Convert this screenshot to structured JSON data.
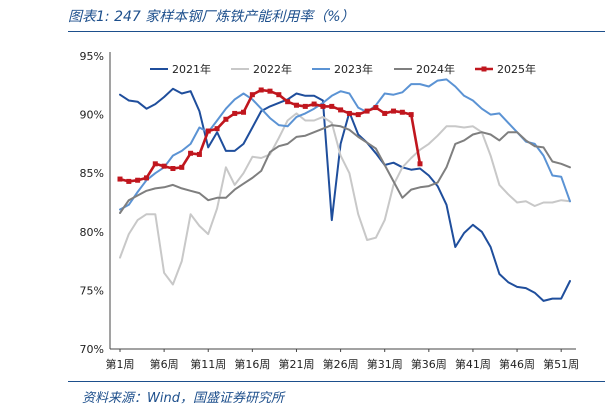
{
  "caption": "图表1: 247 家样本钢厂炼铁产能利用率（%）",
  "source": "资料来源：Wind，国盛证券研究所",
  "chart_data": {
    "type": "line",
    "title": "",
    "xlabel": "",
    "ylabel": "",
    "ylim": [
      70,
      95
    ],
    "yticks": [
      "95%",
      "90%",
      "85%",
      "80%",
      "75%",
      "70%"
    ],
    "xticks": [
      "第1周",
      "第6周",
      "第11周",
      "第16周",
      "第21周",
      "第26周",
      "第31周",
      "第36周",
      "第41周",
      "第46周",
      "第51周"
    ],
    "legend_position": "top",
    "grid": false,
    "series": [
      {
        "name": "2021年",
        "color": "#1f4e9c",
        "marker": "none",
        "x": [
          1,
          2,
          3,
          4,
          5,
          6,
          7,
          8,
          9,
          10,
          11,
          12,
          13,
          14,
          15,
          16,
          17,
          18,
          19,
          20,
          21,
          22,
          23,
          24,
          25,
          26,
          27,
          28,
          29,
          30,
          31,
          32,
          33,
          34,
          35,
          36,
          37,
          38,
          39,
          40,
          41,
          42,
          43,
          44,
          45,
          46,
          47,
          48,
          49,
          50,
          51,
          52
        ],
        "values": [
          91.7,
          91.2,
          91.1,
          90.5,
          90.9,
          91.5,
          92.2,
          91.8,
          92.0,
          90.3,
          87.2,
          88.5,
          86.9,
          86.9,
          87.5,
          88.9,
          90.3,
          90.7,
          91.0,
          91.3,
          91.8,
          91.6,
          91.6,
          91.2,
          81.0,
          87.5,
          90.2,
          88.3,
          87.6,
          86.7,
          85.7,
          85.9,
          85.5,
          85.3,
          85.4,
          84.8,
          83.9,
          82.3,
          78.7,
          79.9,
          80.6,
          80.0,
          78.7,
          76.4,
          75.7,
          75.3,
          75.2,
          74.8,
          74.1,
          74.3,
          74.3,
          75.8
        ]
      },
      {
        "name": "2022年",
        "color": "#c8c8c8",
        "marker": "none",
        "x": [
          1,
          2,
          3,
          4,
          5,
          6,
          7,
          8,
          9,
          10,
          11,
          12,
          13,
          14,
          15,
          16,
          17,
          18,
          19,
          20,
          21,
          22,
          23,
          24,
          25,
          26,
          27,
          28,
          29,
          30,
          31,
          32,
          33,
          34,
          35,
          36,
          37,
          38,
          39,
          40,
          41,
          42,
          43,
          44,
          45,
          46,
          47,
          48,
          49,
          50,
          51,
          52
        ],
        "values": [
          77.8,
          79.8,
          81.0,
          81.5,
          81.5,
          76.5,
          75.5,
          77.5,
          81.5,
          80.5,
          79.8,
          82.0,
          85.5,
          84.0,
          85.0,
          86.4,
          86.3,
          86.6,
          88.0,
          89.5,
          90.1,
          89.5,
          89.5,
          89.8,
          89.3,
          86.5,
          85.0,
          81.5,
          79.3,
          79.5,
          81.0,
          84.0,
          85.5,
          86.3,
          87.0,
          87.5,
          88.2,
          89.0,
          89.0,
          88.9,
          89.0,
          88.5,
          86.5,
          84.0,
          83.2,
          82.5,
          82.6,
          82.2,
          82.5,
          82.5,
          82.7,
          82.6
        ]
      },
      {
        "name": "2023年",
        "color": "#5b93d4",
        "marker": "none",
        "x": [
          1,
          2,
          3,
          4,
          5,
          6,
          7,
          8,
          9,
          10,
          11,
          12,
          13,
          14,
          15,
          16,
          17,
          18,
          19,
          20,
          21,
          22,
          23,
          24,
          25,
          26,
          27,
          28,
          29,
          30,
          31,
          32,
          33,
          34,
          35,
          36,
          37,
          38,
          39,
          40,
          41,
          42,
          43,
          44,
          45,
          46,
          47,
          48,
          49,
          50,
          51,
          52
        ],
        "values": [
          81.9,
          82.3,
          83.4,
          84.4,
          85.0,
          85.5,
          86.5,
          86.9,
          87.5,
          88.9,
          88.5,
          89.5,
          90.5,
          91.3,
          91.8,
          91.3,
          90.5,
          89.7,
          89.1,
          89.0,
          89.8,
          90.1,
          90.5,
          91.0,
          91.6,
          92.0,
          91.8,
          90.6,
          90.2,
          90.8,
          91.8,
          91.7,
          91.9,
          92.6,
          92.6,
          92.4,
          92.9,
          93.0,
          92.4,
          91.6,
          91.2,
          90.5,
          90.0,
          90.1,
          89.3,
          88.5,
          87.7,
          87.5,
          86.5,
          84.8,
          84.7,
          82.6
        ]
      },
      {
        "name": "2024年",
        "color": "#7f7f7f",
        "marker": "none",
        "x": [
          1,
          2,
          3,
          4,
          5,
          6,
          7,
          8,
          9,
          10,
          11,
          12,
          13,
          14,
          15,
          16,
          17,
          18,
          19,
          20,
          21,
          22,
          23,
          24,
          25,
          26,
          27,
          28,
          29,
          30,
          31,
          32,
          33,
          34,
          35,
          36,
          37,
          38,
          39,
          40,
          41,
          42,
          43,
          44,
          45,
          46,
          47,
          48,
          49,
          50,
          51,
          52
        ],
        "values": [
          81.6,
          82.7,
          83.1,
          83.5,
          83.7,
          83.8,
          84.0,
          83.7,
          83.5,
          83.3,
          82.7,
          82.9,
          82.9,
          83.6,
          84.1,
          84.6,
          85.2,
          86.8,
          87.3,
          87.5,
          88.1,
          88.2,
          88.5,
          88.8,
          89.1,
          89.0,
          88.7,
          88.1,
          87.6,
          87.1,
          85.7,
          84.3,
          82.9,
          83.6,
          83.8,
          83.9,
          84.2,
          85.5,
          87.5,
          87.8,
          88.3,
          88.5,
          88.3,
          87.8,
          88.5,
          88.5,
          87.8,
          87.3,
          87.2,
          86.0,
          85.8,
          85.5
        ]
      },
      {
        "name": "2025年",
        "color": "#c0161e",
        "marker": "square",
        "x": [
          1,
          2,
          3,
          4,
          5,
          6,
          7,
          8,
          9,
          10,
          11,
          12,
          13,
          14,
          15,
          16,
          17,
          18,
          19,
          20,
          21,
          22,
          23,
          24,
          25,
          26,
          27,
          28,
          29,
          30,
          31,
          32,
          33,
          34,
          35
        ],
        "values": [
          84.5,
          84.3,
          84.4,
          84.6,
          85.8,
          85.6,
          85.4,
          85.5,
          86.7,
          86.6,
          88.6,
          88.8,
          89.6,
          90.1,
          90.2,
          91.7,
          92.1,
          92.0,
          91.7,
          91.1,
          90.8,
          90.7,
          90.9,
          90.7,
          90.7,
          90.4,
          90.1,
          90.0,
          90.3,
          90.6,
          90.1,
          90.3,
          90.2,
          90.0,
          85.8
        ]
      }
    ]
  }
}
